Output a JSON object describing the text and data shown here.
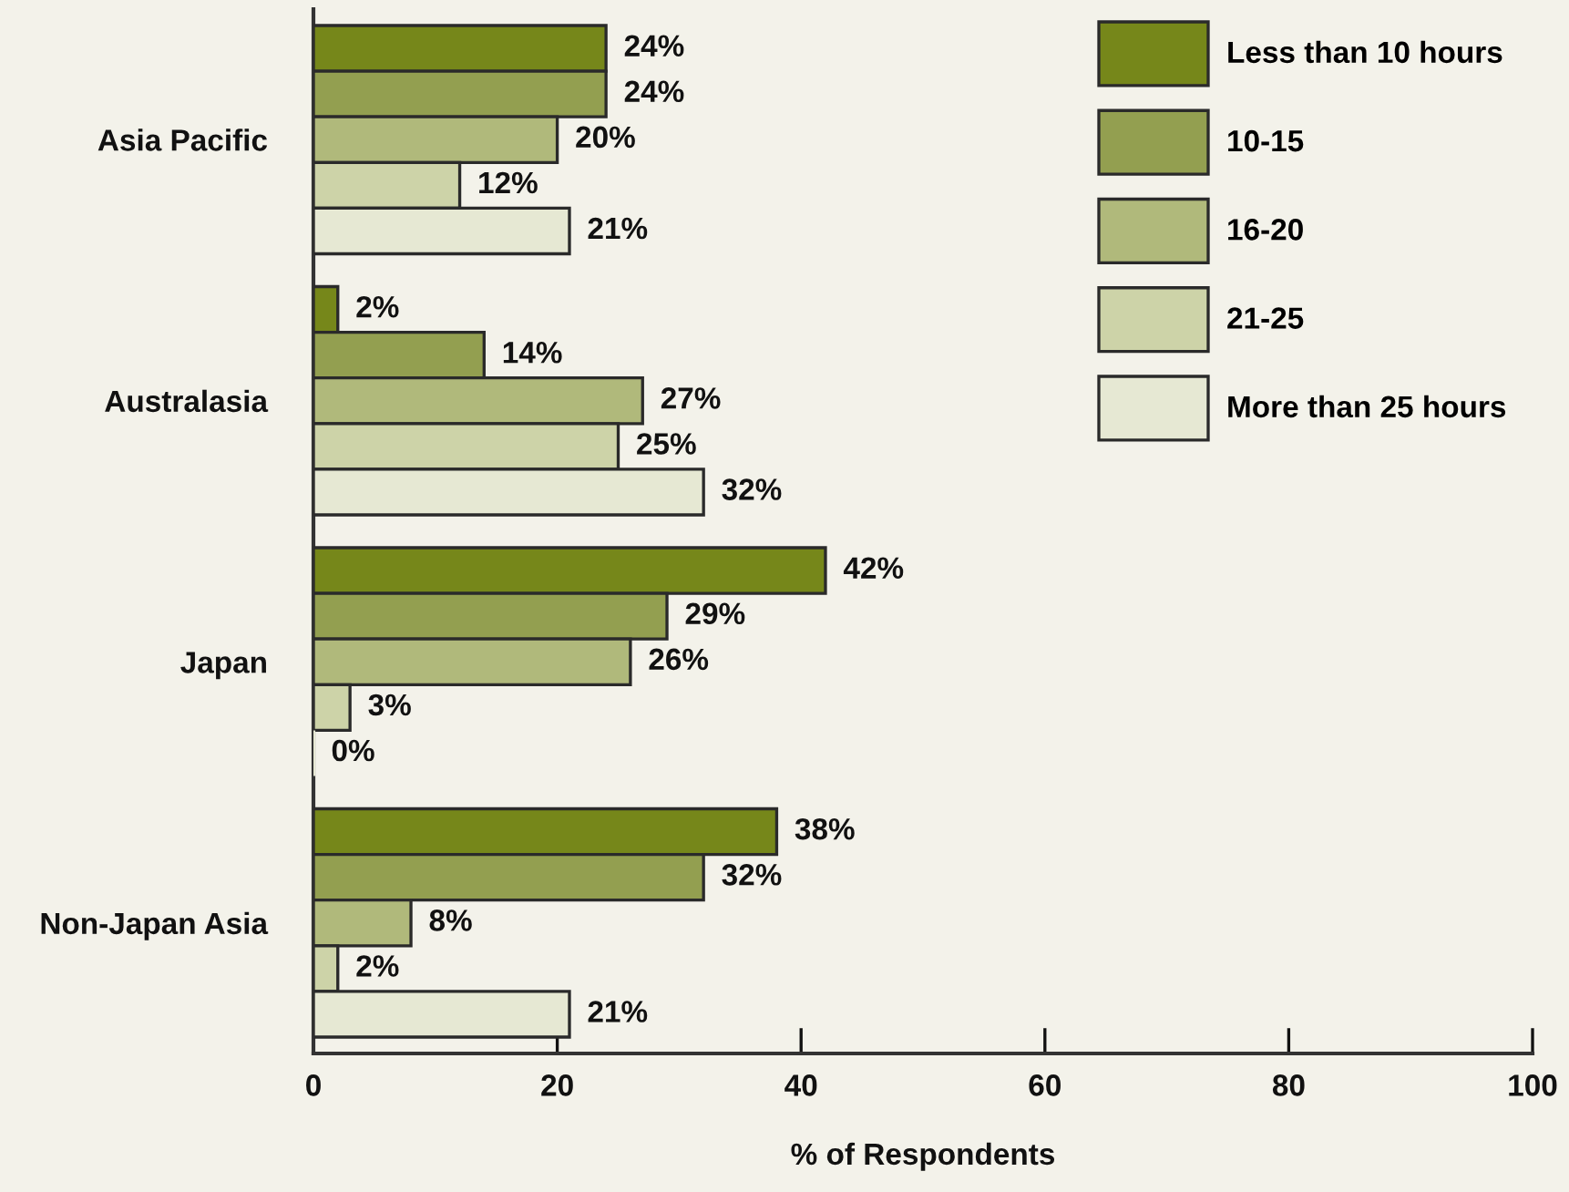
{
  "chart_data": {
    "type": "bar",
    "orientation": "horizontal",
    "xlabel": "% of Respondents",
    "categories": [
      "Asia Pacific",
      "Australasia",
      "Japan",
      "Non-Japan Asia"
    ],
    "series": [
      {
        "name": "Less than 10 hours",
        "color": "#76871a",
        "values": [
          24,
          2,
          42,
          38
        ],
        "value_labels": [
          "24%",
          "2%",
          "42%",
          "38%"
        ]
      },
      {
        "name": "10-15",
        "color": "#939f50",
        "values": [
          24,
          14,
          29,
          32
        ],
        "value_labels": [
          "24%",
          "14%",
          "29%",
          "32%"
        ]
      },
      {
        "name": "16-20",
        "color": "#b0b97b",
        "values": [
          20,
          27,
          26,
          8
        ],
        "value_labels": [
          "20%",
          "27%",
          "26%",
          "8%"
        ]
      },
      {
        "name": "21-25",
        "color": "#cdd3a8",
        "values": [
          12,
          25,
          3,
          2
        ],
        "value_labels": [
          "12%",
          "25%",
          "3%",
          "2%"
        ]
      },
      {
        "name": "More than 25 hours",
        "color": "#e6e8d3",
        "values": [
          21,
          32,
          0,
          21
        ],
        "value_labels": [
          "21%",
          "32%",
          "0%",
          "21%"
        ]
      }
    ],
    "xlim": [
      0,
      100
    ],
    "xticks": [
      0,
      20,
      40,
      60,
      80,
      100
    ],
    "legend": "top right"
  }
}
